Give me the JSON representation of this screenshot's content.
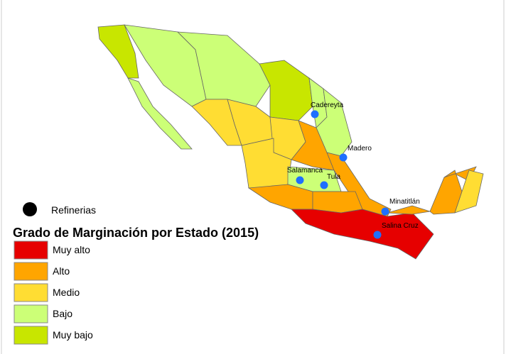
{
  "legend": {
    "title": "Grado de Marginación por Estado (2015)",
    "items": [
      {
        "label": "Muy alto",
        "color": "#e60000"
      },
      {
        "label": "Alto",
        "color": "#ffa500"
      },
      {
        "label": "Medio",
        "color": "#ffdd33"
      },
      {
        "label": "Bajo",
        "color": "#ccff77"
      },
      {
        "label": "Muy bajo",
        "color": "#c8e600"
      }
    ]
  },
  "refineries": {
    "label": "Refinerias",
    "sites": [
      {
        "name": "Cadereyta"
      },
      {
        "name": "Madero"
      },
      {
        "name": "Salamanca"
      },
      {
        "name": "Tula"
      },
      {
        "name": "Minatitlán"
      },
      {
        "name": "Salina Cruz"
      }
    ]
  }
}
